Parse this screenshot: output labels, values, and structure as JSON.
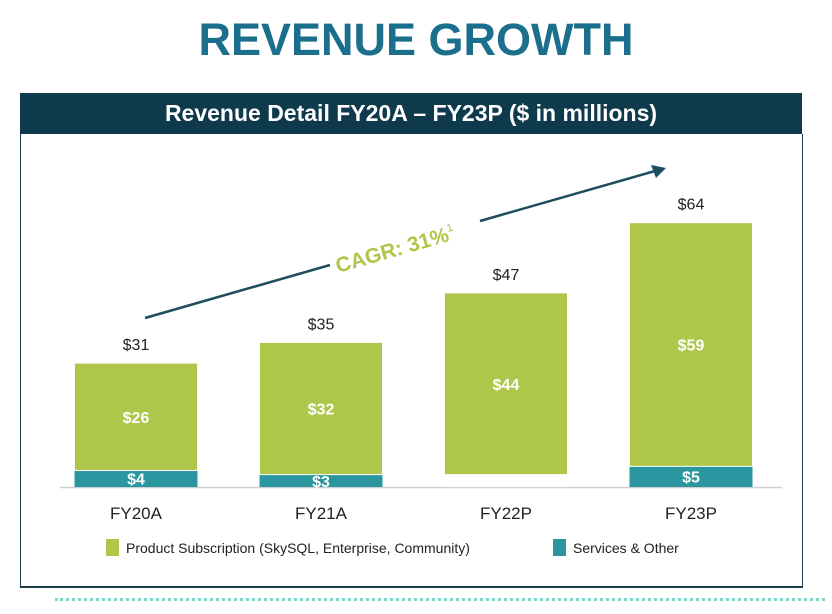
{
  "title": "REVENUE GROWTH",
  "chart_data": {
    "type": "bar",
    "stacked": true,
    "title": "Revenue Detail FY20A – FY23P ($ in millions)",
    "categories": [
      "FY20A",
      "FY21A",
      "FY22P",
      "FY23P"
    ],
    "series": [
      {
        "name": "Services & Other",
        "values": [
          4,
          3,
          3,
          5
        ],
        "labels": [
          "$4",
          "$3",
          "",
          "$5"
        ],
        "color": "#2a97a0"
      },
      {
        "name": "Product Subscription (SkySQL, Enterprise, Community)",
        "values": [
          26,
          32,
          44,
          59
        ],
        "labels": [
          "$26",
          "$32",
          "$44",
          "$59"
        ],
        "color": "#aec64a"
      }
    ],
    "totals": [
      31,
      35,
      47,
      64
    ],
    "total_labels": [
      "$31",
      "$35",
      "$47",
      "$64"
    ],
    "annotation": {
      "text": "CAGR: 31%",
      "footnote": "1"
    },
    "ylim": [
      0,
      70
    ],
    "grid": false,
    "legend": "bottom"
  }
}
